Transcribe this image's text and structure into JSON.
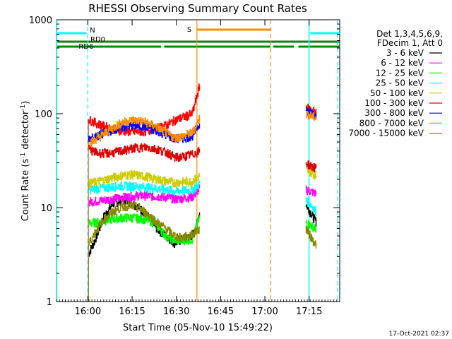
{
  "chart_data": {
    "type": "line",
    "title": "RHESSI Observing Summary Count Rates",
    "xlabel": "Start Time (05-Nov-10 15:49:22)",
    "ylabel_main": "Count Rate (s",
    "ylabel_sup1": "-1",
    "ylabel_mid": " detector",
    "ylabel_sup2": "-1",
    "ylabel_end": ")",
    "x_unit": "minutes since 15:49:22",
    "xlim": [
      0,
      96
    ],
    "ylim": [
      1,
      1000
    ],
    "yscale": "log",
    "x_ticks": [
      {
        "label": "16:00",
        "t": 10.63
      },
      {
        "label": "16:15",
        "t": 25.63
      },
      {
        "label": "16:30",
        "t": 40.63
      },
      {
        "label": "16:45",
        "t": 55.63
      },
      {
        "label": "17:00",
        "t": 70.63
      },
      {
        "label": "17:15",
        "t": 85.63
      }
    ],
    "y_ticks": [
      {
        "label": "1",
        "v": 1
      },
      {
        "label": "10",
        "v": 10
      },
      {
        "label": "100",
        "v": 100
      },
      {
        "label": "1000",
        "v": 1000
      }
    ],
    "legend_header": [
      "Det 1,3,4,5,6,9,",
      "FDecim 1, Att 0"
    ],
    "series": [
      {
        "name": "3 - 6 keV",
        "color": "#000000",
        "seg1": [
          [
            10.8,
            3.2
          ],
          [
            13,
            4.5
          ],
          [
            16,
            8
          ],
          [
            19,
            11
          ],
          [
            22,
            12
          ],
          [
            25,
            11.5
          ],
          [
            28,
            10
          ],
          [
            31,
            8
          ],
          [
            34,
            6
          ],
          [
            37,
            5
          ],
          [
            40,
            4.2
          ],
          [
            42,
            4.5
          ],
          [
            45,
            4.8
          ],
          [
            47,
            5.5
          ],
          [
            48.5,
            9
          ]
        ],
        "seg2": [
          [
            84.5,
            11
          ],
          [
            86,
            9
          ],
          [
            88,
            7
          ]
        ]
      },
      {
        "name": "6 - 12 keV",
        "color": "#ff00ff",
        "seg1": [
          [
            10.8,
            11.5
          ],
          [
            16,
            12
          ],
          [
            22,
            12.8
          ],
          [
            28,
            13.5
          ],
          [
            34,
            13.2
          ],
          [
            38,
            12.8
          ],
          [
            40,
            12.3
          ],
          [
            43,
            12.6
          ],
          [
            46,
            13
          ],
          [
            48.5,
            16
          ]
        ],
        "seg2": [
          [
            84.5,
            15.5
          ],
          [
            86,
            15
          ],
          [
            88,
            14
          ]
        ]
      },
      {
        "name": "12 - 25 keV",
        "color": "#00ff00",
        "seg1": [
          [
            10.8,
            6.8
          ],
          [
            14,
            7
          ],
          [
            18,
            7.5
          ],
          [
            22,
            7.8
          ],
          [
            26,
            7.8
          ],
          [
            30,
            7.5
          ],
          [
            33,
            7
          ],
          [
            35,
            6
          ],
          [
            37,
            5
          ],
          [
            40,
            4.5
          ],
          [
            43,
            4.5
          ],
          [
            46,
            4.6
          ],
          [
            48.5,
            8
          ]
        ],
        "seg2": [
          [
            84.5,
            7
          ],
          [
            86,
            6.5
          ],
          [
            88,
            6
          ]
        ]
      },
      {
        "name": "25 - 50 keV",
        "color": "#00ffff",
        "seg1": [
          [
            10.8,
            15.5
          ],
          [
            14,
            16
          ],
          [
            18,
            16.5
          ],
          [
            22,
            17
          ],
          [
            26,
            17
          ],
          [
            30,
            16.5
          ],
          [
            34,
            16
          ],
          [
            38,
            15.5
          ],
          [
            40,
            15
          ],
          [
            43,
            15.2
          ],
          [
            46,
            15.5
          ],
          [
            48.5,
            18
          ]
        ],
        "seg2": [
          [
            84.5,
            12
          ],
          [
            86,
            11
          ],
          [
            88,
            9
          ]
        ]
      },
      {
        "name": "50 - 100 keV",
        "color": "#cccc00",
        "seg1": [
          [
            10.8,
            18
          ],
          [
            14,
            19
          ],
          [
            18,
            20.5
          ],
          [
            22,
            22
          ],
          [
            26,
            22.5
          ],
          [
            30,
            21.5
          ],
          [
            34,
            20
          ],
          [
            38,
            19
          ],
          [
            40,
            18.5
          ],
          [
            43,
            18.8
          ],
          [
            46,
            19
          ],
          [
            48.5,
            22
          ]
        ],
        "seg2": [
          [
            84.5,
            25
          ],
          [
            86,
            24
          ],
          [
            88,
            22
          ]
        ]
      },
      {
        "name": "100 - 300 keV",
        "color": "#ff0000",
        "seg1": [
          [
            10.8,
            87
          ],
          [
            14,
            78
          ],
          [
            18,
            70
          ],
          [
            22,
            66
          ],
          [
            26,
            64
          ],
          [
            30,
            65
          ],
          [
            34,
            70
          ],
          [
            38,
            78
          ],
          [
            40,
            85
          ],
          [
            43,
            92
          ],
          [
            46,
            100
          ],
          [
            48.5,
            200
          ]
        ],
        "seg2": [
          [
            84.5,
            118
          ],
          [
            86,
            112
          ],
          [
            88,
            104
          ]
        ]
      },
      {
        "name": "300 - 800 keV",
        "color": "#0000ff",
        "seg1": [
          [
            10.8,
            53
          ],
          [
            14,
            58
          ],
          [
            18,
            66
          ],
          [
            22,
            72
          ],
          [
            26,
            75
          ],
          [
            30,
            73
          ],
          [
            34,
            66
          ],
          [
            38,
            58
          ],
          [
            40,
            54
          ],
          [
            43,
            55
          ],
          [
            46,
            58
          ],
          [
            48.5,
            80
          ]
        ],
        "seg2": [
          [
            84.5,
            107
          ],
          [
            86,
            103
          ],
          [
            88,
            97
          ]
        ]
      },
      {
        "name": "800 - 7000 keV",
        "color": "#ff8c00",
        "seg1": [
          [
            10.8,
            48
          ],
          [
            14,
            55
          ],
          [
            18,
            68
          ],
          [
            22,
            80
          ],
          [
            26,
            86
          ],
          [
            30,
            82
          ],
          [
            34,
            72
          ],
          [
            38,
            60
          ],
          [
            40,
            55
          ],
          [
            43,
            58
          ],
          [
            46,
            63
          ],
          [
            48.5,
            90
          ]
        ],
        "seg2": [
          [
            84.5,
            100
          ],
          [
            86,
            96
          ],
          [
            88,
            90
          ]
        ]
      },
      {
        "name": "7000 - 15000 keV",
        "color": "#888800",
        "seg1": [
          [
            10.8,
            4
          ],
          [
            13,
            5.5
          ],
          [
            16,
            7.5
          ],
          [
            19,
            9
          ],
          [
            22,
            10.2
          ],
          [
            25,
            10.5
          ],
          [
            28,
            10
          ],
          [
            31,
            8.5
          ],
          [
            34,
            7
          ],
          [
            37,
            6
          ],
          [
            40,
            5
          ],
          [
            42,
            4.8
          ],
          [
            45,
            5
          ],
          [
            48.5,
            6
          ]
        ],
        "seg2": [
          [
            84.5,
            6
          ],
          [
            86,
            5
          ],
          [
            88,
            4
          ]
        ]
      }
    ],
    "red_bands": {
      "color": "#dd0000",
      "bands": [
        {
          "series": "100 - 300 keV",
          "seg1": [
            [
              10.8,
              42
            ],
            [
              14,
              38
            ],
            [
              18,
              38
            ],
            [
              22,
              40
            ],
            [
              26,
              43
            ],
            [
              30,
              44
            ],
            [
              34,
              42
            ],
            [
              38,
              38
            ],
            [
              40,
              34
            ],
            [
              43,
              35
            ],
            [
              46,
              37
            ],
            [
              48.5,
              40
            ]
          ],
          "seg2": [
            [
              84.5,
              30
            ],
            [
              86,
              28
            ],
            [
              88,
              26
            ]
          ]
        }
      ]
    },
    "markers": {
      "N_label": "N",
      "S_label": "S",
      "RD0_label": "RD0",
      "RD6_label": "RD6",
      "N_color": "#00ffff",
      "S_color": "#ff8c00",
      "RD_color": "#008800",
      "night_bars": [
        [
          0,
          10.2
        ],
        [
          86,
          96
        ]
      ],
      "saa_bar": [
        47.6,
        72.6
      ],
      "rd6_segments": [
        [
          0,
          35.5
        ],
        [
          36.5,
          72.5
        ],
        [
          73.5,
          80.5
        ],
        [
          82,
          96
        ]
      ],
      "cyan_solid": [
        0.1,
        85.6
      ],
      "cyan_dashed": [
        10.6,
        95.3
      ],
      "orange_solid": [
        47.6
      ],
      "orange_dashed": [
        72.6
      ]
    }
  },
  "footer_date": "17-Oct-2021 02:37"
}
